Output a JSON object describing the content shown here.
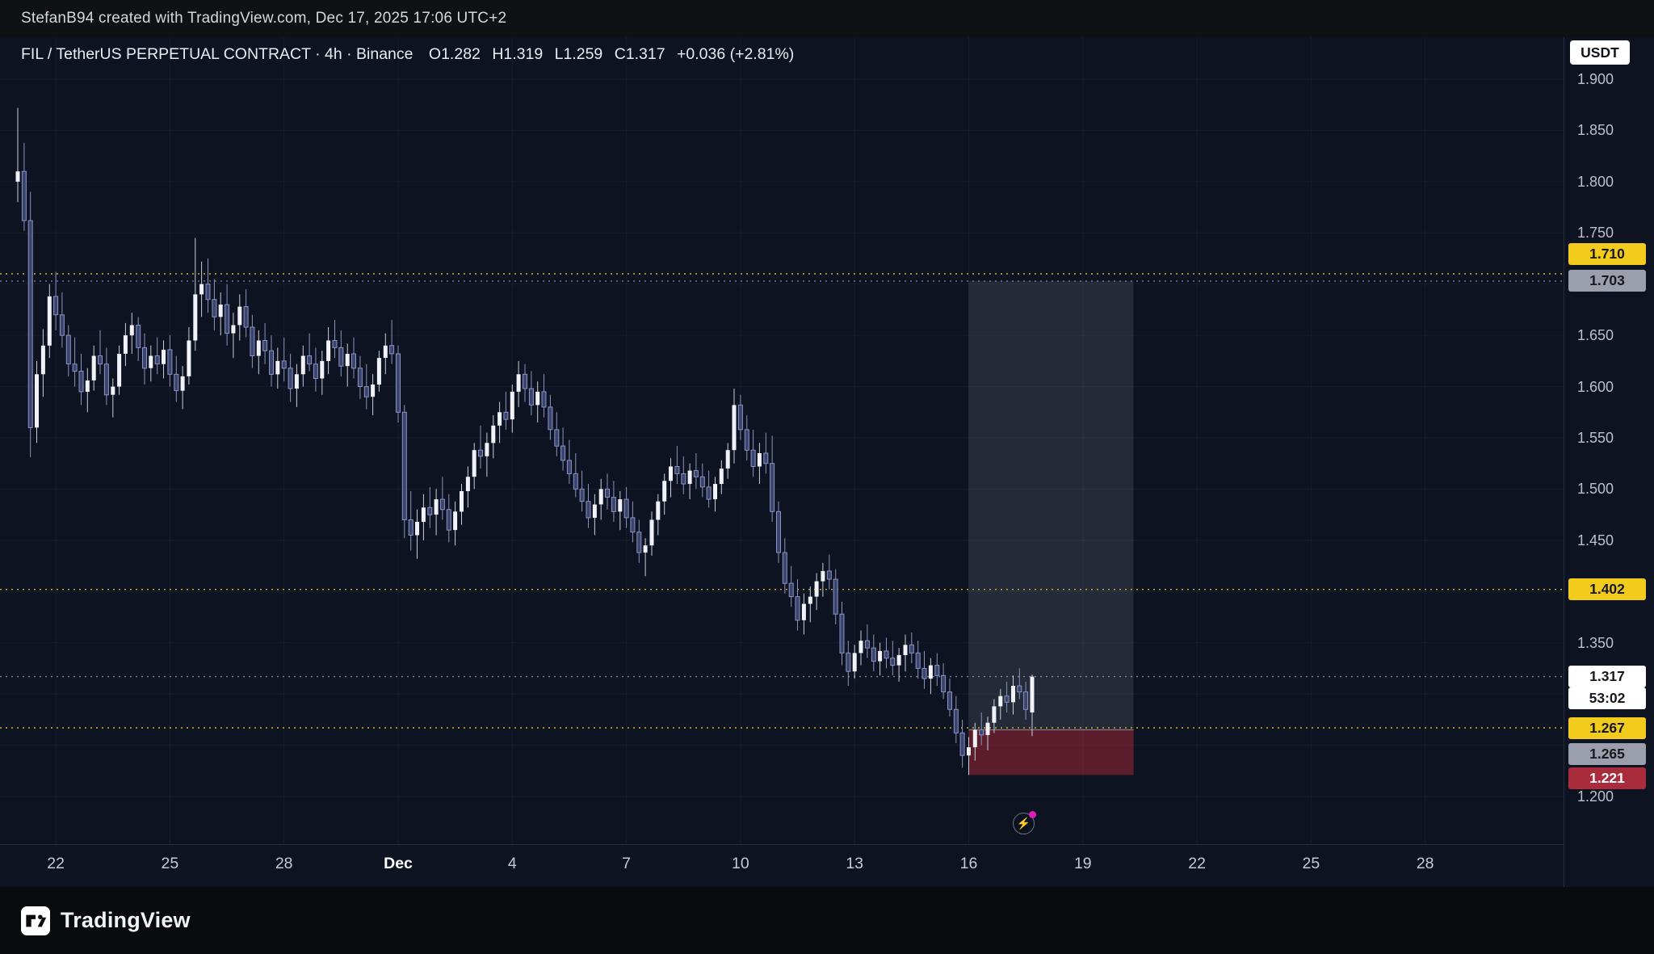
{
  "topbar": {
    "attribution": "StefanB94 created with TradingView.com, Dec 17, 2025 17:06 UTC+2"
  },
  "legend": {
    "symbol_line": "FIL / TetherUS PERPETUAL CONTRACT · 4h · Binance",
    "o": "O1.282",
    "h": "H1.319",
    "l": "L1.259",
    "c": "C1.317",
    "change": "+0.036 (+2.81%)"
  },
  "currency_badge": "USDT",
  "footer": {
    "brand": "TradingView"
  },
  "icons": {
    "event": "⚡"
  },
  "chart_data": {
    "type": "candlestick",
    "symbol": "FIL / TetherUS PERPETUAL CONTRACT",
    "interval": "4h",
    "exchange": "Binance",
    "legend_ohlc": {
      "open": 1.282,
      "high": 1.319,
      "low": 1.259,
      "close": 1.317,
      "change": "+0.036 (+2.81%)"
    },
    "current_price": 1.317,
    "countdown": "53:02",
    "colors": {
      "bg": "#0d1320",
      "up": "#f0f2f7",
      "up_wick": "#c9cedd",
      "down_body": "#39456f",
      "down_border": "#8a93c2",
      "yellow": "#e6c229",
      "gray_line": "#9aa0aa",
      "current": "#e6e9f2",
      "profit_fill": "rgba(190,200,220,0.13)",
      "loss_fill": "rgba(172,41,56,0.5)"
    },
    "y_axis": {
      "min": 1.15,
      "max": 1.94,
      "tick_step": 0.05,
      "visible_ticks": [
        {
          "label": "1.900",
          "price": 1.9
        },
        {
          "label": "1.850",
          "price": 1.85
        },
        {
          "label": "1.800",
          "price": 1.8
        },
        {
          "label": "1.750",
          "price": 1.75
        },
        {
          "label": "1.650",
          "price": 1.65
        },
        {
          "label": "1.600",
          "price": 1.6
        },
        {
          "label": "1.550",
          "price": 1.55
        },
        {
          "label": "1.500",
          "price": 1.5
        },
        {
          "label": "1.450",
          "price": 1.45
        },
        {
          "label": "1.350",
          "price": 1.35
        },
        {
          "label": "1.200",
          "price": 1.2
        }
      ]
    },
    "x_ticks": [
      {
        "label": "22",
        "i": 6
      },
      {
        "label": "25",
        "i": 24
      },
      {
        "label": "28",
        "i": 42
      },
      {
        "label": "Dec",
        "i": 60,
        "bold": true
      },
      {
        "label": "4",
        "i": 78
      },
      {
        "label": "7",
        "i": 96
      },
      {
        "label": "10",
        "i": 114
      },
      {
        "label": "13",
        "i": 132
      },
      {
        "label": "16",
        "i": 150
      },
      {
        "label": "19",
        "i": 168
      },
      {
        "label": "22",
        "i": 186
      },
      {
        "label": "25",
        "i": 204
      },
      {
        "label": "28",
        "i": 222
      }
    ],
    "price_lines": [
      {
        "price": 1.71,
        "label": "1.710",
        "color": "#e6c229",
        "opacity": 0.9
      },
      {
        "price": 1.703,
        "label": "1.703",
        "color": "#9aa0aa",
        "opacity": 0.75
      },
      {
        "price": 1.402,
        "label": "1.402",
        "color": "#e6c229",
        "opacity": 0.9
      },
      {
        "price": 1.317,
        "label": "1.317",
        "color": "#e6e9f2",
        "opacity": 0.5
      },
      {
        "price": 1.267,
        "label": "1.267",
        "color": "#e6c229",
        "opacity": 0.9
      }
    ],
    "position_tool": {
      "type": "long",
      "entry": 1.265,
      "stop": 1.221,
      "target": 1.703,
      "entry_label": "1.265",
      "stop_label": "1.221",
      "target_label": "1.703",
      "start_index": 150,
      "end_index": 176
    },
    "axis_badges": [
      {
        "label": "1.710",
        "kind": "yellow",
        "price": 1.71,
        "dy": -25
      },
      {
        "label": "1.703",
        "kind": "gray",
        "price": 1.703,
        "dy": 0
      },
      {
        "label": "1.402",
        "kind": "yellow",
        "price": 1.402,
        "dy": 0
      },
      {
        "label": "1.317",
        "kind": "white",
        "price": 1.317,
        "dy": 0
      },
      {
        "label": "53:02",
        "kind": "white",
        "price": 1.317,
        "dy": 27
      },
      {
        "label": "1.267",
        "kind": "yellow",
        "price": 1.267,
        "dy": 0
      },
      {
        "label": "1.265",
        "kind": "gray",
        "price": 1.265,
        "dy": 30
      },
      {
        "label": "1.221",
        "kind": "red",
        "price": 1.221,
        "dy": 4
      }
    ],
    "candles": [
      [
        1.8,
        1.872,
        1.78,
        1.81
      ],
      [
        1.81,
        1.838,
        1.752,
        1.762
      ],
      [
        1.762,
        1.79,
        1.531,
        1.56
      ],
      [
        1.56,
        1.625,
        1.545,
        1.612
      ],
      [
        1.612,
        1.656,
        1.59,
        1.64
      ],
      [
        1.64,
        1.7,
        1.628,
        1.688
      ],
      [
        1.688,
        1.712,
        1.655,
        1.67
      ],
      [
        1.67,
        1.692,
        1.638,
        1.65
      ],
      [
        1.65,
        1.66,
        1.61,
        1.622
      ],
      [
        1.622,
        1.648,
        1.6,
        1.615
      ],
      [
        1.615,
        1.632,
        1.582,
        1.595
      ],
      [
        1.595,
        1.618,
        1.575,
        1.606
      ],
      [
        1.606,
        1.64,
        1.596,
        1.63
      ],
      [
        1.63,
        1.655,
        1.612,
        1.622
      ],
      [
        1.622,
        1.638,
        1.582,
        1.592
      ],
      [
        1.592,
        1.608,
        1.57,
        1.6
      ],
      [
        1.6,
        1.64,
        1.592,
        1.632
      ],
      [
        1.632,
        1.662,
        1.62,
        1.65
      ],
      [
        1.65,
        1.672,
        1.632,
        1.66
      ],
      [
        1.66,
        1.668,
        1.625,
        1.638
      ],
      [
        1.638,
        1.652,
        1.602,
        1.618
      ],
      [
        1.618,
        1.64,
        1.605,
        1.63
      ],
      [
        1.63,
        1.648,
        1.612,
        1.622
      ],
      [
        1.622,
        1.645,
        1.608,
        1.636
      ],
      [
        1.636,
        1.65,
        1.6,
        1.612
      ],
      [
        1.612,
        1.63,
        1.585,
        1.596
      ],
      [
        1.596,
        1.62,
        1.578,
        1.61
      ],
      [
        1.61,
        1.658,
        1.602,
        1.645
      ],
      [
        1.645,
        1.745,
        1.635,
        1.69
      ],
      [
        1.69,
        1.722,
        1.668,
        1.7
      ],
      [
        1.7,
        1.725,
        1.672,
        1.685
      ],
      [
        1.685,
        1.705,
        1.655,
        1.668
      ],
      [
        1.668,
        1.692,
        1.65,
        1.68
      ],
      [
        1.68,
        1.7,
        1.64,
        1.652
      ],
      [
        1.652,
        1.672,
        1.628,
        1.66
      ],
      [
        1.66,
        1.69,
        1.645,
        1.678
      ],
      [
        1.678,
        1.695,
        1.648,
        1.658
      ],
      [
        1.658,
        1.67,
        1.618,
        1.63
      ],
      [
        1.63,
        1.655,
        1.612,
        1.645
      ],
      [
        1.645,
        1.662,
        1.622,
        1.635
      ],
      [
        1.635,
        1.65,
        1.6,
        1.612
      ],
      [
        1.612,
        1.638,
        1.598,
        1.625
      ],
      [
        1.625,
        1.648,
        1.605,
        1.618
      ],
      [
        1.618,
        1.632,
        1.585,
        1.598
      ],
      [
        1.598,
        1.622,
        1.58,
        1.612
      ],
      [
        1.612,
        1.64,
        1.6,
        1.63
      ],
      [
        1.63,
        1.652,
        1.615,
        1.622
      ],
      [
        1.622,
        1.638,
        1.595,
        1.608
      ],
      [
        1.608,
        1.635,
        1.592,
        1.625
      ],
      [
        1.625,
        1.658,
        1.612,
        1.645
      ],
      [
        1.645,
        1.665,
        1.628,
        1.638
      ],
      [
        1.638,
        1.655,
        1.61,
        1.62
      ],
      [
        1.62,
        1.642,
        1.6,
        1.632
      ],
      [
        1.632,
        1.648,
        1.608,
        1.618
      ],
      [
        1.618,
        1.63,
        1.588,
        1.6
      ],
      [
        1.6,
        1.622,
        1.578,
        1.59
      ],
      [
        1.59,
        1.612,
        1.572,
        1.602
      ],
      [
        1.602,
        1.635,
        1.595,
        1.628
      ],
      [
        1.628,
        1.652,
        1.612,
        1.64
      ],
      [
        1.64,
        1.665,
        1.622,
        1.632
      ],
      [
        1.632,
        1.64,
        1.565,
        1.575
      ],
      [
        1.575,
        1.582,
        1.452,
        1.47
      ],
      [
        1.47,
        1.498,
        1.44,
        1.455
      ],
      [
        1.455,
        1.48,
        1.432,
        1.468
      ],
      [
        1.468,
        1.495,
        1.45,
        1.482
      ],
      [
        1.482,
        1.502,
        1.462,
        1.475
      ],
      [
        1.475,
        1.5,
        1.455,
        1.49
      ],
      [
        1.49,
        1.512,
        1.47,
        1.48
      ],
      [
        1.48,
        1.495,
        1.448,
        1.46
      ],
      [
        1.46,
        1.488,
        1.445,
        1.478
      ],
      [
        1.478,
        1.505,
        1.465,
        1.498
      ],
      [
        1.498,
        1.522,
        1.482,
        1.512
      ],
      [
        1.512,
        1.545,
        1.5,
        1.538
      ],
      [
        1.538,
        1.562,
        1.52,
        1.532
      ],
      [
        1.532,
        1.555,
        1.512,
        1.545
      ],
      [
        1.545,
        1.572,
        1.53,
        1.562
      ],
      [
        1.562,
        1.585,
        1.545,
        1.575
      ],
      [
        1.575,
        1.595,
        1.558,
        1.568
      ],
      [
        1.568,
        1.602,
        1.555,
        1.595
      ],
      [
        1.595,
        1.625,
        1.58,
        1.612
      ],
      [
        1.612,
        1.622,
        1.585,
        1.598
      ],
      [
        1.598,
        1.615,
        1.572,
        1.582
      ],
      [
        1.582,
        1.605,
        1.565,
        1.595
      ],
      [
        1.595,
        1.612,
        1.57,
        1.58
      ],
      [
        1.58,
        1.592,
        1.548,
        1.558
      ],
      [
        1.558,
        1.575,
        1.532,
        1.542
      ],
      [
        1.542,
        1.56,
        1.518,
        1.528
      ],
      [
        1.528,
        1.548,
        1.505,
        1.515
      ],
      [
        1.515,
        1.535,
        1.492,
        1.5
      ],
      [
        1.5,
        1.518,
        1.478,
        1.488
      ],
      [
        1.488,
        1.505,
        1.462,
        1.472
      ],
      [
        1.472,
        1.495,
        1.455,
        1.485
      ],
      [
        1.485,
        1.51,
        1.47,
        1.5
      ],
      [
        1.5,
        1.515,
        1.48,
        1.492
      ],
      [
        1.492,
        1.508,
        1.468,
        1.478
      ],
      [
        1.478,
        1.498,
        1.46,
        1.49
      ],
      [
        1.49,
        1.502,
        1.462,
        1.472
      ],
      [
        1.472,
        1.488,
        1.448,
        1.458
      ],
      [
        1.458,
        1.47,
        1.428,
        1.438
      ],
      [
        1.438,
        1.452,
        1.415,
        1.445
      ],
      [
        1.445,
        1.478,
        1.435,
        1.47
      ],
      [
        1.47,
        1.495,
        1.455,
        1.488
      ],
      [
        1.488,
        1.515,
        1.475,
        1.508
      ],
      [
        1.508,
        1.53,
        1.492,
        1.522
      ],
      [
        1.522,
        1.542,
        1.505,
        1.515
      ],
      [
        1.515,
        1.532,
        1.495,
        1.505
      ],
      [
        1.505,
        1.525,
        1.49,
        1.518
      ],
      [
        1.518,
        1.535,
        1.5,
        1.512
      ],
      [
        1.512,
        1.525,
        1.492,
        1.502
      ],
      [
        1.502,
        1.518,
        1.482,
        1.49
      ],
      [
        1.49,
        1.512,
        1.478,
        1.505
      ],
      [
        1.505,
        1.528,
        1.495,
        1.52
      ],
      [
        1.52,
        1.545,
        1.51,
        1.538
      ],
      [
        1.538,
        1.598,
        1.525,
        1.582
      ],
      [
        1.582,
        1.592,
        1.548,
        1.558
      ],
      [
        1.558,
        1.572,
        1.528,
        1.538
      ],
      [
        1.538,
        1.558,
        1.512,
        1.522
      ],
      [
        1.522,
        1.545,
        1.505,
        1.535
      ],
      [
        1.535,
        1.555,
        1.515,
        1.525
      ],
      [
        1.525,
        1.552,
        1.468,
        1.478
      ],
      [
        1.478,
        1.488,
        1.428,
        1.438
      ],
      [
        1.438,
        1.452,
        1.398,
        1.408
      ],
      [
        1.408,
        1.425,
        1.385,
        1.395
      ],
      [
        1.395,
        1.412,
        1.362,
        1.372
      ],
      [
        1.372,
        1.398,
        1.358,
        1.388
      ],
      [
        1.388,
        1.405,
        1.37,
        1.395
      ],
      [
        1.395,
        1.418,
        1.382,
        1.41
      ],
      [
        1.41,
        1.428,
        1.395,
        1.42
      ],
      [
        1.42,
        1.436,
        1.402,
        1.412
      ],
      [
        1.412,
        1.422,
        1.368,
        1.378
      ],
      [
        1.378,
        1.39,
        1.328,
        1.34
      ],
      [
        1.34,
        1.352,
        1.308,
        1.322
      ],
      [
        1.322,
        1.348,
        1.315,
        1.34
      ],
      [
        1.34,
        1.362,
        1.328,
        1.352
      ],
      [
        1.352,
        1.368,
        1.335,
        1.345
      ],
      [
        1.345,
        1.358,
        1.322,
        1.332
      ],
      [
        1.332,
        1.35,
        1.318,
        1.342
      ],
      [
        1.342,
        1.355,
        1.325,
        1.335
      ],
      [
        1.335,
        1.352,
        1.318,
        1.328
      ],
      [
        1.328,
        1.345,
        1.312,
        1.338
      ],
      [
        1.338,
        1.358,
        1.322,
        1.348
      ],
      [
        1.348,
        1.36,
        1.33,
        1.34
      ],
      [
        1.34,
        1.352,
        1.315,
        1.325
      ],
      [
        1.325,
        1.342,
        1.305,
        1.315
      ],
      [
        1.315,
        1.335,
        1.3,
        1.328
      ],
      [
        1.328,
        1.34,
        1.308,
        1.318
      ],
      [
        1.318,
        1.33,
        1.295,
        1.302
      ],
      [
        1.302,
        1.315,
        1.278,
        1.285
      ],
      [
        1.285,
        1.298,
        1.252,
        1.262
      ],
      [
        1.262,
        1.275,
        1.228,
        1.24
      ],
      [
        1.24,
        1.258,
        1.221,
        1.248
      ],
      [
        1.248,
        1.272,
        1.235,
        1.265
      ],
      [
        1.265,
        1.282,
        1.25,
        1.26
      ],
      [
        1.26,
        1.278,
        1.245,
        1.272
      ],
      [
        1.272,
        1.295,
        1.262,
        1.288
      ],
      [
        1.288,
        1.305,
        1.275,
        1.298
      ],
      [
        1.298,
        1.312,
        1.282,
        1.292
      ],
      [
        1.292,
        1.318,
        1.28,
        1.308
      ],
      [
        1.308,
        1.325,
        1.295,
        1.302
      ],
      [
        1.302,
        1.312,
        1.275,
        1.285
      ],
      [
        1.282,
        1.319,
        1.259,
        1.317
      ]
    ]
  }
}
